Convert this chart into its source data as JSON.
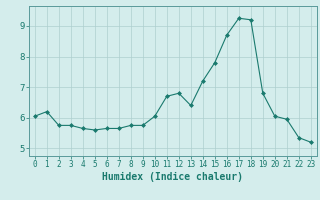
{
  "x": [
    0,
    1,
    2,
    3,
    4,
    5,
    6,
    7,
    8,
    9,
    10,
    11,
    12,
    13,
    14,
    15,
    16,
    17,
    18,
    19,
    20,
    21,
    22,
    23
  ],
  "y": [
    6.05,
    6.2,
    5.75,
    5.75,
    5.65,
    5.6,
    5.65,
    5.65,
    5.75,
    5.75,
    6.05,
    6.7,
    6.8,
    6.4,
    7.2,
    7.8,
    8.7,
    9.25,
    9.2,
    6.8,
    6.05,
    5.95,
    5.35,
    5.2
  ],
  "line_color": "#1a7a6e",
  "marker": "D",
  "marker_size": 2.0,
  "bg_color": "#d4edec",
  "grid_color": "#aecfcf",
  "xlabel": "Humidex (Indice chaleur)",
  "xlabel_fontsize": 7,
  "tick_label_color": "#1a7a6e",
  "axis_color": "#5a9a9a",
  "xlim": [
    -0.5,
    23.5
  ],
  "ylim": [
    4.75,
    9.65
  ],
  "yticks": [
    5,
    6,
    7,
    8,
    9
  ],
  "xticks": [
    0,
    1,
    2,
    3,
    4,
    5,
    6,
    7,
    8,
    9,
    10,
    11,
    12,
    13,
    14,
    15,
    16,
    17,
    18,
    19,
    20,
    21,
    22,
    23
  ]
}
